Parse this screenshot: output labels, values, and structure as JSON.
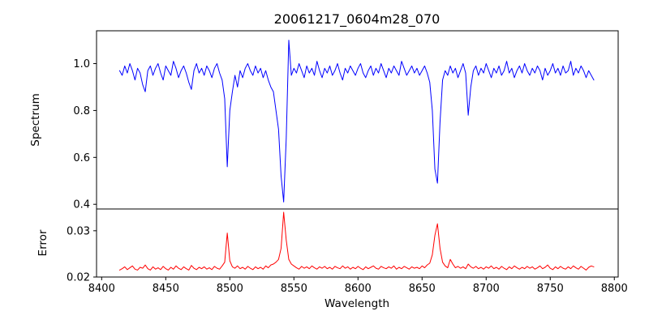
{
  "figure": {
    "title": "20061217_0604m28_070",
    "background_color": "#ffffff",
    "frame_color": "#000000"
  },
  "chart_data": {
    "type": "line",
    "title": "20061217_0604m28_070",
    "xlabel": "Wavelength",
    "grid": false,
    "legend": "none",
    "xlim": [
      8396,
      8803
    ],
    "xticks": [
      8400,
      8450,
      8500,
      8550,
      8600,
      8650,
      8700,
      8750,
      8800
    ],
    "xtick_labels": [
      "8400",
      "8450",
      "8500",
      "8550",
      "8600",
      "8650",
      "8700",
      "8750",
      "8800"
    ],
    "x_start": 8414,
    "x_step": 2,
    "panels": [
      {
        "name": "spectrum",
        "ylabel": "Spectrum",
        "ylim": [
          0.38,
          1.14
        ],
        "yticks": [
          0.4,
          0.6,
          0.8,
          1.0
        ],
        "ytick_labels": [
          "0.4",
          "0.6",
          "0.8",
          "1.0"
        ],
        "line_color": "#0000ff",
        "y": [
          0.97,
          0.95,
          0.99,
          0.96,
          1.0,
          0.97,
          0.93,
          0.98,
          0.96,
          0.91,
          0.88,
          0.97,
          0.99,
          0.95,
          0.98,
          1.0,
          0.96,
          0.93,
          0.99,
          0.97,
          0.95,
          1.01,
          0.98,
          0.94,
          0.97,
          0.99,
          0.96,
          0.92,
          0.89,
          0.97,
          1.0,
          0.96,
          0.98,
          0.95,
          0.99,
          0.97,
          0.94,
          0.98,
          1.0,
          0.96,
          0.93,
          0.85,
          0.56,
          0.8,
          0.88,
          0.95,
          0.9,
          0.97,
          0.94,
          0.98,
          1.0,
          0.97,
          0.95,
          0.99,
          0.96,
          0.98,
          0.94,
          0.97,
          0.93,
          0.9,
          0.88,
          0.8,
          0.72,
          0.52,
          0.41,
          0.68,
          1.1,
          0.95,
          0.98,
          0.96,
          1.0,
          0.97,
          0.94,
          0.99,
          0.96,
          0.98,
          0.95,
          1.01,
          0.97,
          0.94,
          0.98,
          0.96,
          0.99,
          0.95,
          0.97,
          1.0,
          0.96,
          0.93,
          0.98,
          0.96,
          0.99,
          0.97,
          0.95,
          0.98,
          1.0,
          0.96,
          0.94,
          0.97,
          0.99,
          0.95,
          0.98,
          0.96,
          1.0,
          0.97,
          0.94,
          0.98,
          0.96,
          0.99,
          0.97,
          0.95,
          1.01,
          0.98,
          0.95,
          0.97,
          0.99,
          0.96,
          0.98,
          0.95,
          0.97,
          0.99,
          0.96,
          0.92,
          0.8,
          0.55,
          0.49,
          0.75,
          0.93,
          0.97,
          0.95,
          0.99,
          0.96,
          0.98,
          0.94,
          0.97,
          1.0,
          0.96,
          0.78,
          0.9,
          0.97,
          0.99,
          0.95,
          0.98,
          0.96,
          1.0,
          0.97,
          0.94,
          0.98,
          0.96,
          0.99,
          0.95,
          0.97,
          1.01,
          0.96,
          0.98,
          0.94,
          0.97,
          0.99,
          0.96,
          1.0,
          0.97,
          0.95,
          0.98,
          0.96,
          0.99,
          0.97,
          0.93,
          0.98,
          0.95,
          0.97,
          1.0,
          0.96,
          0.98,
          0.95,
          0.99,
          0.96,
          0.97,
          1.01,
          0.95,
          0.98,
          0.96,
          0.99,
          0.97,
          0.94,
          0.97,
          0.95,
          0.93
        ]
      },
      {
        "name": "error",
        "ylabel": "Error",
        "ylim": [
          0.02,
          0.0347
        ],
        "yticks": [
          0.02,
          0.03
        ],
        "ytick_labels": [
          "0.02",
          "0.03"
        ],
        "line_color": "#ff0000",
        "y": [
          0.0215,
          0.0218,
          0.0222,
          0.0216,
          0.022,
          0.0224,
          0.0217,
          0.0215,
          0.0221,
          0.0219,
          0.0226,
          0.0218,
          0.0215,
          0.0222,
          0.0217,
          0.022,
          0.0216,
          0.0223,
          0.0218,
          0.0215,
          0.0221,
          0.0217,
          0.0224,
          0.0219,
          0.0216,
          0.0222,
          0.0218,
          0.0215,
          0.0225,
          0.0219,
          0.0216,
          0.0221,
          0.0218,
          0.0222,
          0.0217,
          0.022,
          0.0216,
          0.0223,
          0.0219,
          0.0217,
          0.0224,
          0.0232,
          0.0295,
          0.0235,
          0.0222,
          0.0219,
          0.0224,
          0.0218,
          0.0221,
          0.0217,
          0.0223,
          0.0219,
          0.0216,
          0.0222,
          0.0218,
          0.0221,
          0.0217,
          0.0224,
          0.022,
          0.0226,
          0.0228,
          0.0232,
          0.0238,
          0.0262,
          0.034,
          0.028,
          0.0238,
          0.0228,
          0.0224,
          0.022,
          0.0217,
          0.0223,
          0.0219,
          0.0222,
          0.0218,
          0.0224,
          0.022,
          0.0217,
          0.0222,
          0.0219,
          0.0223,
          0.0218,
          0.0221,
          0.0217,
          0.0223,
          0.022,
          0.0218,
          0.0224,
          0.0219,
          0.0222,
          0.0217,
          0.0221,
          0.0218,
          0.0223,
          0.0219,
          0.0216,
          0.0222,
          0.0218,
          0.0221,
          0.0224,
          0.0219,
          0.0217,
          0.0223,
          0.022,
          0.0218,
          0.0222,
          0.0219,
          0.0224,
          0.0217,
          0.0221,
          0.0218,
          0.0223,
          0.022,
          0.0217,
          0.0222,
          0.0219,
          0.0221,
          0.0218,
          0.0224,
          0.022,
          0.0226,
          0.023,
          0.0248,
          0.029,
          0.0315,
          0.0262,
          0.0232,
          0.0224,
          0.022,
          0.0238,
          0.0228,
          0.022,
          0.0223,
          0.0219,
          0.0222,
          0.0218,
          0.0228,
          0.0222,
          0.0219,
          0.0223,
          0.0218,
          0.0221,
          0.0217,
          0.0222,
          0.0219,
          0.0224,
          0.0218,
          0.0221,
          0.0217,
          0.0223,
          0.0219,
          0.0216,
          0.0222,
          0.0218,
          0.0224,
          0.022,
          0.0217,
          0.0221,
          0.0218,
          0.0223,
          0.0219,
          0.0222,
          0.0217,
          0.022,
          0.0224,
          0.0218,
          0.0221,
          0.0226,
          0.0219,
          0.0216,
          0.0222,
          0.0218,
          0.0223,
          0.0219,
          0.0217,
          0.0222,
          0.0218,
          0.0224,
          0.022,
          0.0217,
          0.0223,
          0.0219,
          0.0215,
          0.0221,
          0.0224,
          0.0222
        ]
      }
    ]
  }
}
